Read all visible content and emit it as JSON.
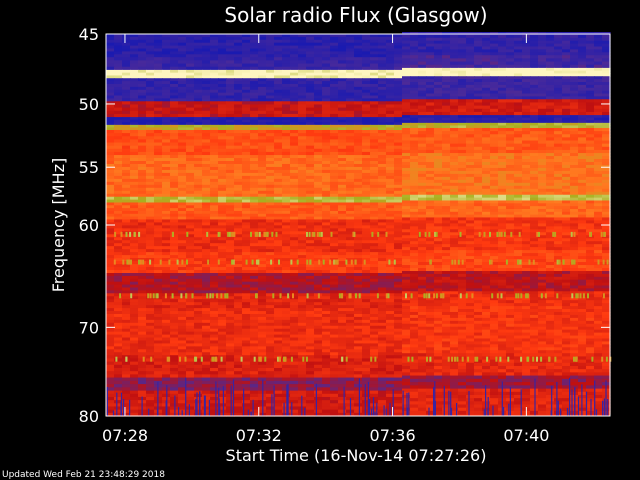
{
  "chart_data": {
    "type": "heatmap",
    "title": "Solar radio Flux (Glasgow)",
    "xlabel": "Start Time (16-Nov-14 07:27:26)",
    "ylabel": "Frequency [MHz]",
    "footer": "Updated Wed Feb 21 23:48:29 2018",
    "ylim": [
      45,
      80
    ],
    "y_scale": "log",
    "y_inverted": true,
    "xlim": [
      "07:27:26",
      "07:42:30"
    ],
    "x_ticks": [
      "07:28",
      "07:32",
      "07:36",
      "07:40"
    ],
    "y_ticks": [
      "45",
      "50",
      "55",
      "60",
      "70",
      "80"
    ],
    "y_ticks_values": [
      45,
      50,
      55,
      60,
      70,
      80
    ],
    "colormap": [
      "#1a1ab0",
      "#4a2a9a",
      "#c01010",
      "#ff3a10",
      "#ff7a20",
      "#a8b020",
      "#fff6c0"
    ],
    "bands": [
      {
        "from": 45.0,
        "to": 46.6,
        "level": 0.05
      },
      {
        "from": 46.6,
        "to": 47.5,
        "level": 0.1
      },
      {
        "from": 47.5,
        "to": 48.1,
        "level": 1.0
      },
      {
        "from": 48.1,
        "to": 49.8,
        "level": 0.08
      },
      {
        "from": 49.8,
        "to": 51.0,
        "level": 0.35
      },
      {
        "from": 51.0,
        "to": 51.6,
        "level": 0.02
      },
      {
        "from": 51.6,
        "to": 52.0,
        "level": 0.8
      },
      {
        "from": 52.0,
        "to": 54.0,
        "level": 0.55
      },
      {
        "from": 54.0,
        "to": 57.5,
        "level": 0.62
      },
      {
        "from": 57.5,
        "to": 58.0,
        "level": 0.85
      },
      {
        "from": 58.0,
        "to": 59.5,
        "level": 0.58
      },
      {
        "from": 59.5,
        "to": 62.5,
        "level": 0.45
      },
      {
        "from": 62.5,
        "to": 64.5,
        "level": 0.5
      },
      {
        "from": 64.5,
        "to": 66.5,
        "level": 0.3
      },
      {
        "from": 66.5,
        "to": 68.0,
        "level": 0.42
      },
      {
        "from": 68.0,
        "to": 73.0,
        "level": 0.45
      },
      {
        "from": 73.0,
        "to": 75.5,
        "level": 0.4
      },
      {
        "from": 75.5,
        "to": 77.0,
        "level": 0.25
      },
      {
        "from": 77.0,
        "to": 80.0,
        "level": 0.38
      }
    ]
  }
}
